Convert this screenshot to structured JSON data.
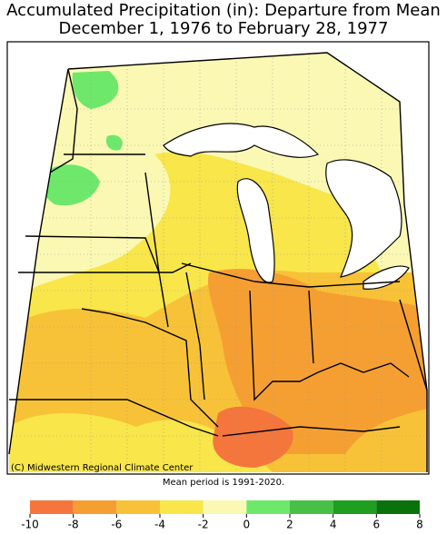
{
  "header": {
    "title": "Accumulated Precipitation (in): Departure from Mean",
    "subtitle": "December 1, 1976 to February 28, 1977"
  },
  "map": {
    "credit": "(C) Midwestern Regional Climate Center",
    "note": "Mean period is 1991-2020."
  },
  "legend": {
    "ticks": [
      -10,
      -8,
      -6,
      -4,
      -2,
      0,
      2,
      4,
      6,
      8
    ],
    "colors": [
      "#f4763c",
      "#f59f32",
      "#f7c237",
      "#f8e64a",
      "#fbf8b4",
      "#6ee86a",
      "#48c048",
      "#1f9e1f",
      "#0a720a"
    ]
  }
}
